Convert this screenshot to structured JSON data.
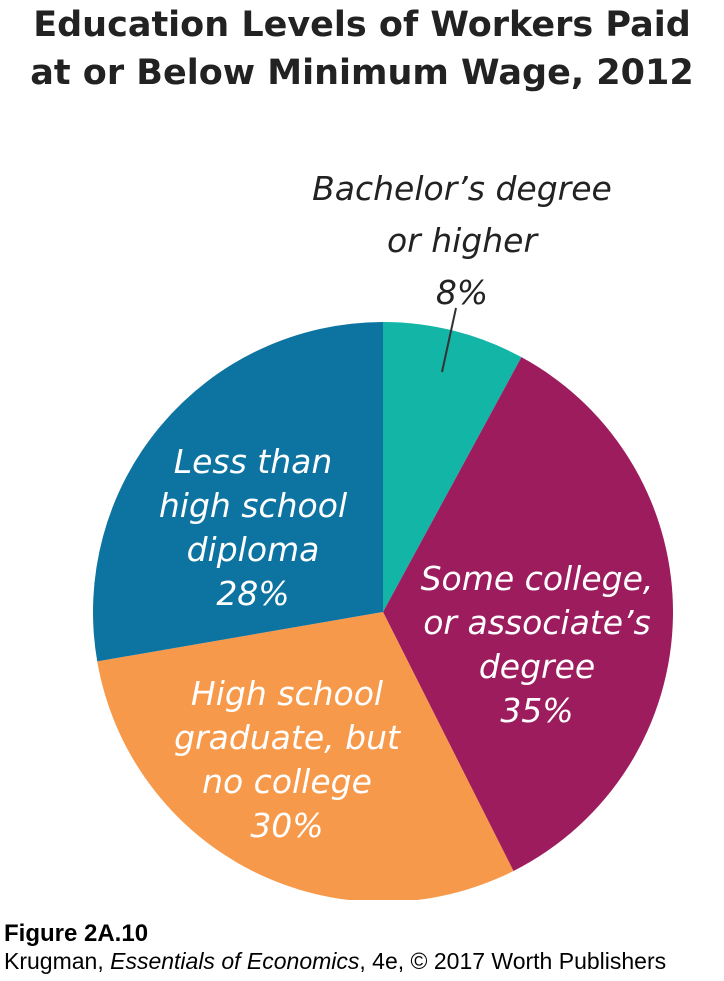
{
  "chart_data": {
    "type": "pie",
    "title_lines": [
      "Education Levels of Workers Paid",
      "at or Below Minimum Wage, 2012"
    ],
    "slices": [
      {
        "label_lines": [
          "Bachelor’s degree",
          "or higher",
          "8%"
        ],
        "value": 8,
        "color": "#13b5a7",
        "label_color": "#222222"
      },
      {
        "label_lines": [
          "Some college,",
          "or associate’s",
          "degree",
          "35%"
        ],
        "value": 35,
        "color": "#9c1c5e",
        "label_color": "#ffffff"
      },
      {
        "label_lines": [
          "High school",
          "graduate, but",
          "no college",
          "30%"
        ],
        "value": 30,
        "color": "#f7994a",
        "label_color": "#ffffff"
      },
      {
        "label_lines": [
          "Less than",
          "high school",
          "diploma",
          "28%"
        ],
        "value": 28,
        "color": "#0d73a0",
        "label_color": "#ffffff"
      }
    ],
    "start": "top",
    "direction": "clockwise"
  },
  "caption": {
    "figure": "Figure 2A.10",
    "source_author": "Krugman, ",
    "source_book": "Essentials of Economics",
    "source_rest": ", 4e, © 2017 Worth Publishers"
  }
}
